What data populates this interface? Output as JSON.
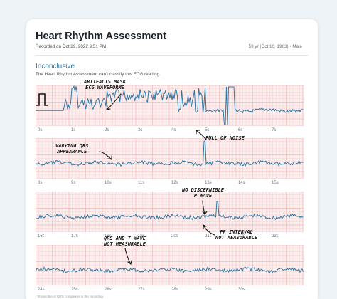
{
  "header": {
    "title": "Heart Rhythm Assessment",
    "recorded": "Recorded on Oct 29, 2022 9:51 PM",
    "patient": "59 yr (Oct 10, 1963) • Male"
  },
  "result": {
    "label": "Inconclusive",
    "description": "The Heart Rhythm Assessment can't classify this ECG reading."
  },
  "strips": [
    {
      "ticks": [
        "0s",
        "1s",
        "2s",
        "3s",
        "4s",
        "5s",
        "6s",
        "7s"
      ]
    },
    {
      "ticks": [
        "8s",
        "9s",
        "10s",
        "11s",
        "12s",
        "13s",
        "14s",
        "15s"
      ]
    },
    {
      "ticks": [
        "16s",
        "17s",
        "18s",
        "19s",
        "20s",
        "21s",
        "22s",
        "23s"
      ]
    },
    {
      "ticks": [
        "24s",
        "25s",
        "26s",
        "27s",
        "28s",
        "29s",
        "30s"
      ]
    }
  ],
  "annotations": [
    {
      "text": "ARTIFACTS MASK\nECG WAVEFORMS"
    },
    {
      "text": "FULL OF NOISE"
    },
    {
      "text": "VARYING QRS\nAPPEARANCE"
    },
    {
      "text": "NO DISCERNIBLE\nP WAVE"
    },
    {
      "text": "PR INTERVAL\nNOT MEASURABLE"
    },
    {
      "text": "QRS AND T WAVE\nNOT MEASURABLE"
    }
  ],
  "footer": "*Ensemble of QRS complexes in the recording",
  "colors": {
    "accent": "#2b7aa8",
    "trace": "#2f78a6",
    "grid": "#f2b9b9",
    "grid_bg": "#fdeeee"
  }
}
